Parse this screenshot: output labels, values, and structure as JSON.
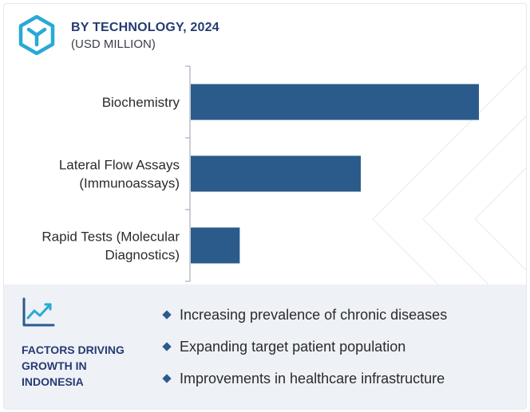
{
  "header": {
    "title": "BY TECHNOLOGY, 2024",
    "subtitle": "(USD MILLION)"
  },
  "chart_data": {
    "type": "bar",
    "orientation": "horizontal",
    "categories": [
      [
        "Biochemistry"
      ],
      [
        "Lateral Flow Assays",
        "(Immunoassays)"
      ],
      [
        "Rapid Tests (Molecular",
        "Diagnostics)"
      ]
    ],
    "values": [
      100,
      59,
      17
    ],
    "xlim": [
      0,
      100
    ],
    "grid": false,
    "legend": "none",
    "bar_color": "#2b5b8a"
  },
  "factors": {
    "title": "FACTORS DRIVING GROWTH IN INDONESIA",
    "items": [
      "Increasing prevalence of chronic diseases",
      "Expanding target patient population",
      "Improvements in healthcare infrastructure"
    ]
  },
  "colors": {
    "accent": "#2b5b8a",
    "heading": "#263b73",
    "logo": "#29a9d6",
    "panel": "#eef1f6"
  },
  "icons": {
    "logo": "hexagon-y-logo",
    "factors": "trending-chart-icon",
    "bullet": "diamond-bullet"
  }
}
